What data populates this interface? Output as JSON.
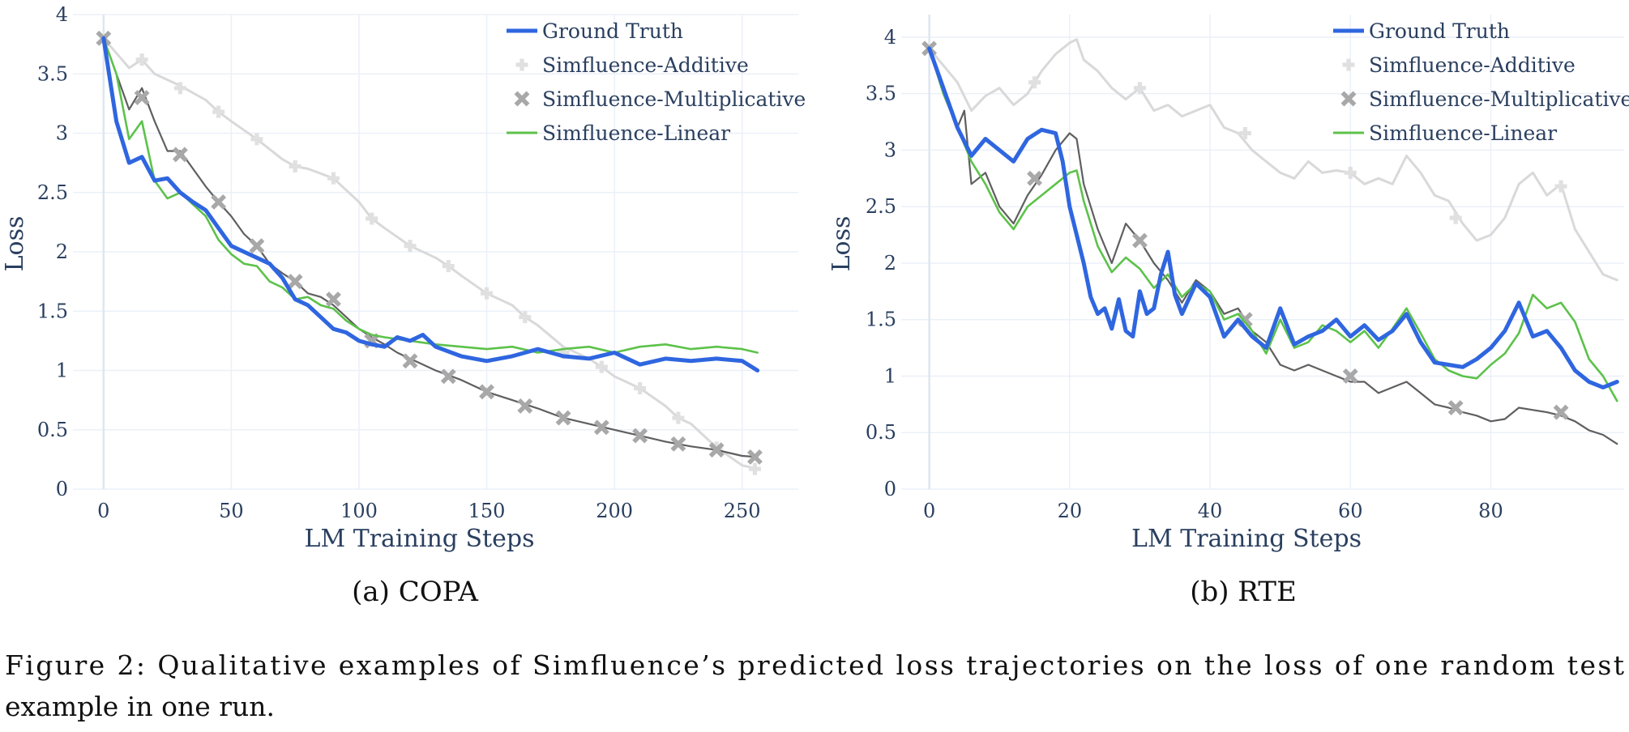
{
  "figure_caption": {
    "line1": "Figure 2: Qualitative examples of Simfluence’s predicted loss trajectories on the loss of one random test",
    "line2": "example in one run."
  },
  "series_colors": {
    "Ground Truth": "#2f66e0",
    "Simfluence-Additive": "#d9d9d9",
    "Simfluence-Multiplicative": "#5f5f5f",
    "Simfluence-Linear": "#5cc24a"
  },
  "marker_color": "#a8a8a8",
  "chart_data": [
    {
      "type": "line",
      "caption": "(a) COPA",
      "xlabel": "LM Training Steps",
      "ylabel": "Loss",
      "xlim": [
        -12,
        272
      ],
      "ylim": [
        0,
        4
      ],
      "xticks": [
        0,
        50,
        100,
        150,
        200,
        250
      ],
      "yticks": [
        0,
        0.5,
        1,
        1.5,
        2,
        2.5,
        3,
        3.5,
        4
      ],
      "ytick_labels": [
        "0",
        "0.5",
        "1",
        "1.5",
        "2",
        "2.5",
        "3",
        "3.5",
        "4"
      ],
      "grid": true,
      "legend": "top-right",
      "legend_entries": [
        "Ground Truth",
        "Simfluence-Additive",
        "Simfluence-Multiplicative",
        "Simfluence-Linear"
      ],
      "series": [
        {
          "name": "Ground Truth",
          "x": [
            0,
            5,
            10,
            15,
            20,
            25,
            30,
            35,
            40,
            45,
            50,
            55,
            60,
            65,
            70,
            75,
            80,
            85,
            90,
            95,
            100,
            105,
            110,
            115,
            120,
            125,
            130,
            140,
            150,
            160,
            170,
            180,
            190,
            200,
            210,
            220,
            230,
            240,
            250,
            256
          ],
          "y": [
            3.8,
            3.1,
            2.75,
            2.8,
            2.6,
            2.62,
            2.5,
            2.42,
            2.35,
            2.2,
            2.05,
            2.0,
            1.95,
            1.9,
            1.78,
            1.6,
            1.55,
            1.45,
            1.35,
            1.32,
            1.25,
            1.22,
            1.2,
            1.28,
            1.25,
            1.3,
            1.2,
            1.12,
            1.08,
            1.12,
            1.18,
            1.12,
            1.1,
            1.15,
            1.05,
            1.1,
            1.08,
            1.1,
            1.08,
            1.0
          ]
        },
        {
          "name": "Simfluence-Additive",
          "x": [
            0,
            10,
            15,
            20,
            30,
            40,
            45,
            50,
            60,
            70,
            75,
            80,
            90,
            100,
            105,
            110,
            120,
            130,
            135,
            140,
            150,
            160,
            165,
            170,
            180,
            190,
            195,
            200,
            210,
            220,
            225,
            230,
            240,
            250,
            256
          ],
          "y": [
            3.8,
            3.55,
            3.62,
            3.5,
            3.4,
            3.28,
            3.18,
            3.1,
            2.95,
            2.78,
            2.72,
            2.7,
            2.62,
            2.42,
            2.28,
            2.2,
            2.05,
            1.95,
            1.88,
            1.8,
            1.65,
            1.55,
            1.45,
            1.38,
            1.2,
            1.1,
            1.03,
            0.95,
            0.85,
            0.7,
            0.6,
            0.55,
            0.35,
            0.2,
            0.17
          ]
        },
        {
          "name": "Simfluence-Multiplicative",
          "x": [
            0,
            5,
            10,
            15,
            20,
            25,
            30,
            35,
            40,
            45,
            50,
            55,
            60,
            65,
            70,
            75,
            80,
            85,
            90,
            95,
            100,
            105,
            110,
            115,
            120,
            130,
            140,
            150,
            160,
            170,
            180,
            190,
            200,
            210,
            220,
            230,
            240,
            250,
            256
          ],
          "y": [
            3.8,
            3.5,
            3.2,
            3.38,
            3.1,
            2.85,
            2.85,
            2.7,
            2.55,
            2.42,
            2.3,
            2.15,
            2.05,
            1.9,
            1.82,
            1.75,
            1.65,
            1.62,
            1.55,
            1.45,
            1.35,
            1.28,
            1.22,
            1.15,
            1.1,
            1.0,
            0.92,
            0.82,
            0.75,
            0.68,
            0.6,
            0.55,
            0.5,
            0.45,
            0.4,
            0.36,
            0.33,
            0.28,
            0.27
          ]
        },
        {
          "name": "Simfluence-Linear",
          "x": [
            0,
            5,
            10,
            15,
            20,
            25,
            30,
            35,
            40,
            45,
            50,
            55,
            60,
            65,
            70,
            75,
            80,
            85,
            90,
            95,
            100,
            105,
            110,
            120,
            130,
            140,
            150,
            160,
            170,
            180,
            190,
            200,
            210,
            220,
            230,
            240,
            250,
            256
          ],
          "y": [
            3.8,
            3.5,
            2.95,
            3.1,
            2.6,
            2.45,
            2.5,
            2.4,
            2.3,
            2.1,
            1.98,
            1.9,
            1.88,
            1.75,
            1.7,
            1.6,
            1.62,
            1.55,
            1.52,
            1.42,
            1.35,
            1.3,
            1.28,
            1.25,
            1.22,
            1.2,
            1.18,
            1.2,
            1.15,
            1.18,
            1.2,
            1.15,
            1.2,
            1.22,
            1.18,
            1.2,
            1.18,
            1.15
          ]
        }
      ],
      "markers": {
        "Simfluence-Additive": {
          "x": [
            15,
            30,
            45,
            60,
            75,
            90,
            105,
            120,
            135,
            150,
            165,
            180,
            195,
            210,
            225,
            240,
            255
          ],
          "y": [
            3.62,
            3.38,
            3.18,
            2.95,
            2.72,
            2.62,
            2.28,
            2.05,
            1.88,
            1.65,
            1.45,
            1.15,
            1.03,
            0.85,
            0.6,
            0.35,
            0.17
          ]
        },
        "Simfluence-Multiplicative": {
          "x": [
            0,
            15,
            30,
            45,
            60,
            75,
            90,
            105,
            120,
            135,
            150,
            165,
            180,
            195,
            210,
            225,
            240,
            255
          ],
          "y": [
            3.8,
            3.3,
            2.82,
            2.42,
            2.05,
            1.75,
            1.6,
            1.25,
            1.08,
            0.95,
            0.82,
            0.7,
            0.6,
            0.52,
            0.45,
            0.38,
            0.33,
            0.27
          ]
        }
      }
    },
    {
      "type": "line",
      "caption": "(b) RTE",
      "xlabel": "LM Training Steps",
      "ylabel": "Loss",
      "xlim": [
        -4,
        99
      ],
      "ylim": [
        0,
        4.2
      ],
      "xticks": [
        0,
        20,
        40,
        60,
        80
      ],
      "yticks": [
        0,
        0.5,
        1,
        1.5,
        2,
        2.5,
        3,
        3.5,
        4
      ],
      "ytick_labels": [
        "0",
        "0.5",
        "1",
        "1.5",
        "2",
        "2.5",
        "3",
        "3.5",
        "4"
      ],
      "grid": true,
      "legend": "top-right",
      "legend_entries": [
        "Ground Truth",
        "Simfluence-Additive",
        "Simfluence-Multiplicative",
        "Simfluence-Linear"
      ],
      "series": [
        {
          "name": "Ground Truth",
          "x": [
            0,
            2,
            4,
            6,
            8,
            10,
            12,
            14,
            16,
            18,
            19,
            20,
            22,
            23,
            24,
            25,
            26,
            27,
            28,
            29,
            30,
            31,
            32,
            33,
            34,
            35,
            36,
            38,
            40,
            42,
            44,
            46,
            48,
            50,
            52,
            54,
            56,
            58,
            60,
            62,
            64,
            66,
            68,
            70,
            72,
            74,
            76,
            78,
            80,
            82,
            84,
            86,
            88,
            90,
            92,
            94,
            96,
            98
          ],
          "y": [
            3.9,
            3.55,
            3.2,
            2.95,
            3.1,
            3.0,
            2.9,
            3.1,
            3.18,
            3.15,
            2.9,
            2.5,
            2.0,
            1.7,
            1.55,
            1.6,
            1.42,
            1.68,
            1.4,
            1.35,
            1.75,
            1.55,
            1.6,
            1.9,
            2.1,
            1.72,
            1.55,
            1.82,
            1.7,
            1.35,
            1.5,
            1.35,
            1.25,
            1.6,
            1.28,
            1.35,
            1.4,
            1.5,
            1.35,
            1.45,
            1.32,
            1.4,
            1.55,
            1.3,
            1.12,
            1.1,
            1.08,
            1.15,
            1.25,
            1.4,
            1.65,
            1.35,
            1.4,
            1.25,
            1.05,
            0.95,
            0.9,
            0.95
          ]
        },
        {
          "name": "Simfluence-Additive",
          "x": [
            0,
            2,
            4,
            6,
            8,
            10,
            12,
            14,
            15,
            16,
            18,
            20,
            21,
            22,
            24,
            26,
            28,
            30,
            32,
            34,
            36,
            38,
            40,
            42,
            44,
            46,
            48,
            50,
            52,
            54,
            56,
            58,
            60,
            62,
            64,
            66,
            68,
            70,
            72,
            74,
            76,
            78,
            80,
            82,
            84,
            86,
            88,
            90,
            92,
            94,
            96,
            98
          ],
          "y": [
            3.9,
            3.75,
            3.6,
            3.35,
            3.48,
            3.55,
            3.4,
            3.5,
            3.6,
            3.7,
            3.85,
            3.95,
            3.98,
            3.8,
            3.7,
            3.55,
            3.45,
            3.55,
            3.35,
            3.4,
            3.3,
            3.35,
            3.4,
            3.2,
            3.15,
            3.0,
            2.9,
            2.8,
            2.75,
            2.9,
            2.8,
            2.82,
            2.8,
            2.7,
            2.75,
            2.7,
            2.95,
            2.8,
            2.6,
            2.55,
            2.35,
            2.2,
            2.25,
            2.4,
            2.7,
            2.8,
            2.6,
            2.7,
            2.3,
            2.1,
            1.9,
            1.85
          ]
        },
        {
          "name": "Simfluence-Multiplicative",
          "x": [
            0,
            2,
            4,
            5,
            6,
            8,
            10,
            12,
            14,
            16,
            18,
            20,
            21,
            22,
            24,
            26,
            28,
            30,
            32,
            34,
            36,
            38,
            40,
            42,
            44,
            46,
            48,
            50,
            52,
            54,
            56,
            58,
            60,
            62,
            64,
            66,
            68,
            70,
            72,
            74,
            76,
            78,
            80,
            82,
            84,
            86,
            88,
            90,
            92,
            94,
            96,
            98
          ],
          "y": [
            3.9,
            3.5,
            3.2,
            3.35,
            2.7,
            2.8,
            2.5,
            2.35,
            2.6,
            2.78,
            3.0,
            3.15,
            3.1,
            2.7,
            2.3,
            2.0,
            2.35,
            2.2,
            2.0,
            1.85,
            1.65,
            1.85,
            1.75,
            1.55,
            1.6,
            1.4,
            1.3,
            1.1,
            1.05,
            1.1,
            1.05,
            1.0,
            0.95,
            0.95,
            0.85,
            0.9,
            0.95,
            0.85,
            0.75,
            0.72,
            0.68,
            0.65,
            0.6,
            0.62,
            0.72,
            0.7,
            0.68,
            0.65,
            0.6,
            0.52,
            0.48,
            0.4
          ]
        },
        {
          "name": "Simfluence-Linear",
          "x": [
            0,
            2,
            4,
            6,
            8,
            10,
            12,
            14,
            16,
            18,
            20,
            21,
            22,
            24,
            26,
            28,
            30,
            32,
            34,
            36,
            38,
            40,
            42,
            44,
            46,
            48,
            50,
            52,
            54,
            56,
            58,
            60,
            62,
            64,
            66,
            68,
            70,
            72,
            74,
            76,
            78,
            80,
            82,
            84,
            86,
            88,
            90,
            92,
            94,
            96,
            98
          ],
          "y": [
            3.9,
            3.5,
            3.2,
            2.9,
            2.7,
            2.45,
            2.3,
            2.5,
            2.6,
            2.7,
            2.8,
            2.82,
            2.55,
            2.15,
            1.92,
            2.05,
            1.95,
            1.78,
            1.9,
            1.7,
            1.82,
            1.75,
            1.5,
            1.55,
            1.4,
            1.2,
            1.5,
            1.25,
            1.3,
            1.45,
            1.4,
            1.3,
            1.4,
            1.25,
            1.42,
            1.6,
            1.38,
            1.15,
            1.05,
            1.0,
            0.98,
            1.1,
            1.2,
            1.38,
            1.72,
            1.6,
            1.65,
            1.48,
            1.15,
            1.0,
            0.78
          ]
        }
      ],
      "markers": {
        "Simfluence-Additive": {
          "x": [
            15,
            30,
            45,
            60,
            75,
            90
          ],
          "y": [
            3.6,
            3.55,
            3.15,
            2.8,
            2.4,
            2.68
          ]
        },
        "Simfluence-Multiplicative": {
          "x": [
            0,
            15,
            30,
            45,
            60,
            75,
            90
          ],
          "y": [
            3.9,
            2.75,
            2.2,
            1.5,
            1.0,
            0.72,
            0.68
          ]
        }
      }
    }
  ]
}
